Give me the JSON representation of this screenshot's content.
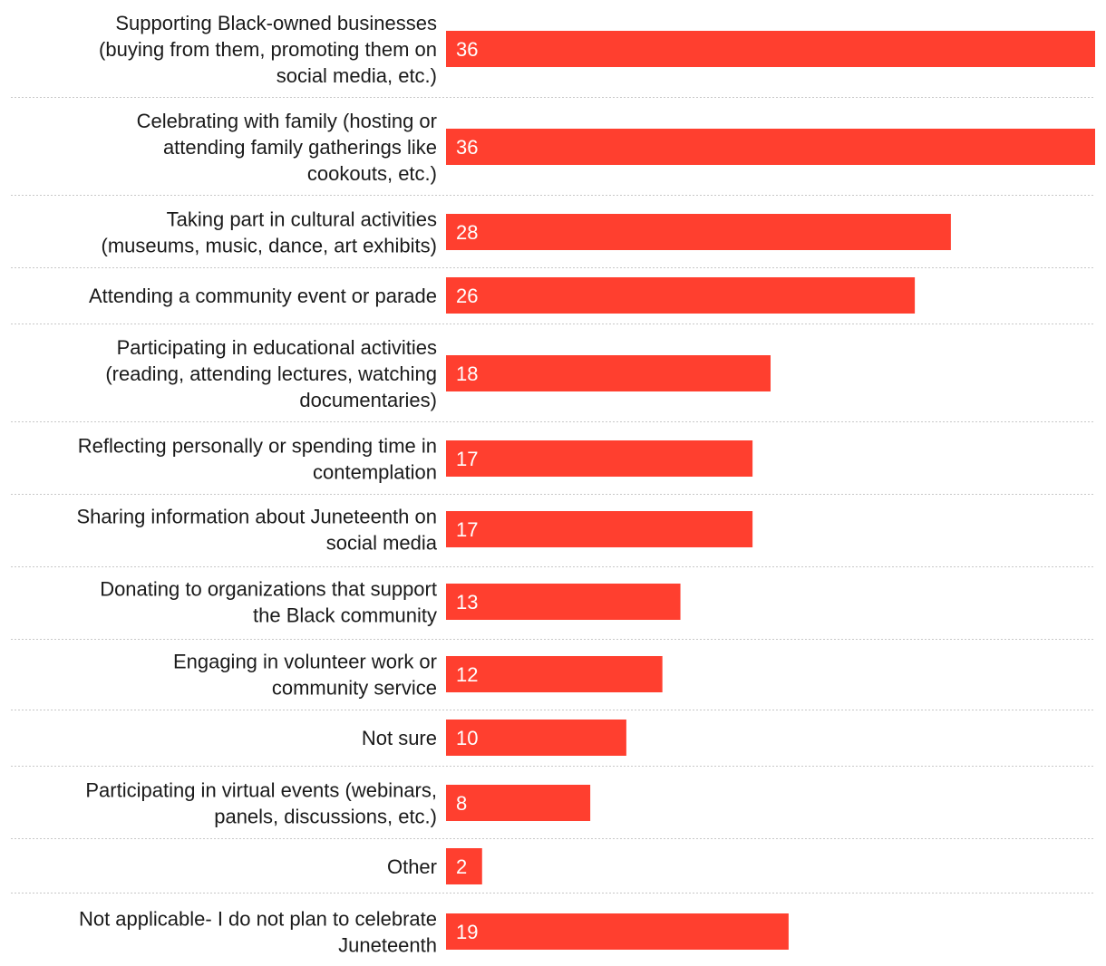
{
  "chart_data": {
    "type": "bar",
    "orientation": "horizontal",
    "title": "",
    "xlabel": "",
    "ylabel": "",
    "xlim": [
      0,
      36
    ],
    "grid": false,
    "bar_color": "#ff3f2f",
    "categories": [
      [
        "Supporting Black-owned businesses",
        "(buying from them, promoting them on",
        "social media, etc.)"
      ],
      [
        "Celebrating with family (hosting or",
        "attending family gatherings like",
        "cookouts, etc.)"
      ],
      [
        "Taking part in cultural activities",
        "(museums, music, dance, art exhibits)"
      ],
      [
        "Attending a community event or parade"
      ],
      [
        "Participating in educational activities",
        "(reading, attending lectures, watching",
        "documentaries)"
      ],
      [
        "Reflecting personally or spending time in",
        "contemplation"
      ],
      [
        "Sharing information about Juneteenth on",
        "social media"
      ],
      [
        "Donating to organizations that support",
        "the Black community"
      ],
      [
        "Engaging in volunteer work or",
        "community service"
      ],
      [
        "Not sure"
      ],
      [
        "Participating in virtual events (webinars,",
        "panels, discussions, etc.)"
      ],
      [
        "Other"
      ],
      [
        "Not applicable- I do not plan to celebrate",
        "Juneteenth"
      ]
    ],
    "values": [
      36,
      36,
      28,
      26,
      18,
      17,
      17,
      13,
      12,
      10,
      8,
      2,
      19
    ]
  }
}
